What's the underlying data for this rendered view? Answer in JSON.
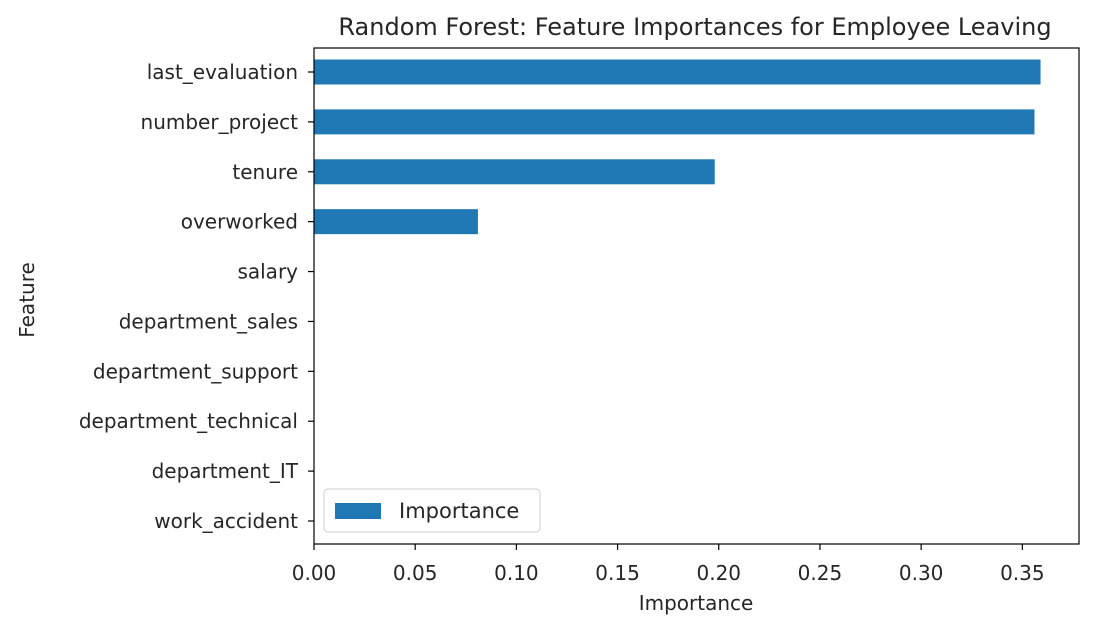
{
  "chart_data": {
    "type": "bar",
    "orientation": "horizontal",
    "title": "Random Forest: Feature Importances for Employee Leaving",
    "xlabel": "Importance",
    "ylabel": "Feature",
    "categories": [
      "last_evaluation",
      "number_project",
      "tenure",
      "overworked",
      "salary",
      "department_sales",
      "department_support",
      "department_technical",
      "department_IT",
      "work_accident"
    ],
    "series": [
      {
        "name": "Importance",
        "values": [
          0.359,
          0.356,
          0.198,
          0.081,
          0.0,
          0.0,
          0.0,
          0.0,
          0.0,
          0.0
        ],
        "color": "#1f77b4"
      }
    ],
    "xlim": [
      0,
      0.378
    ],
    "xticks": [
      "0.00",
      "0.05",
      "0.10",
      "0.15",
      "0.20",
      "0.25",
      "0.30",
      "0.35"
    ],
    "grid": false,
    "legend_position": "lower-left"
  }
}
